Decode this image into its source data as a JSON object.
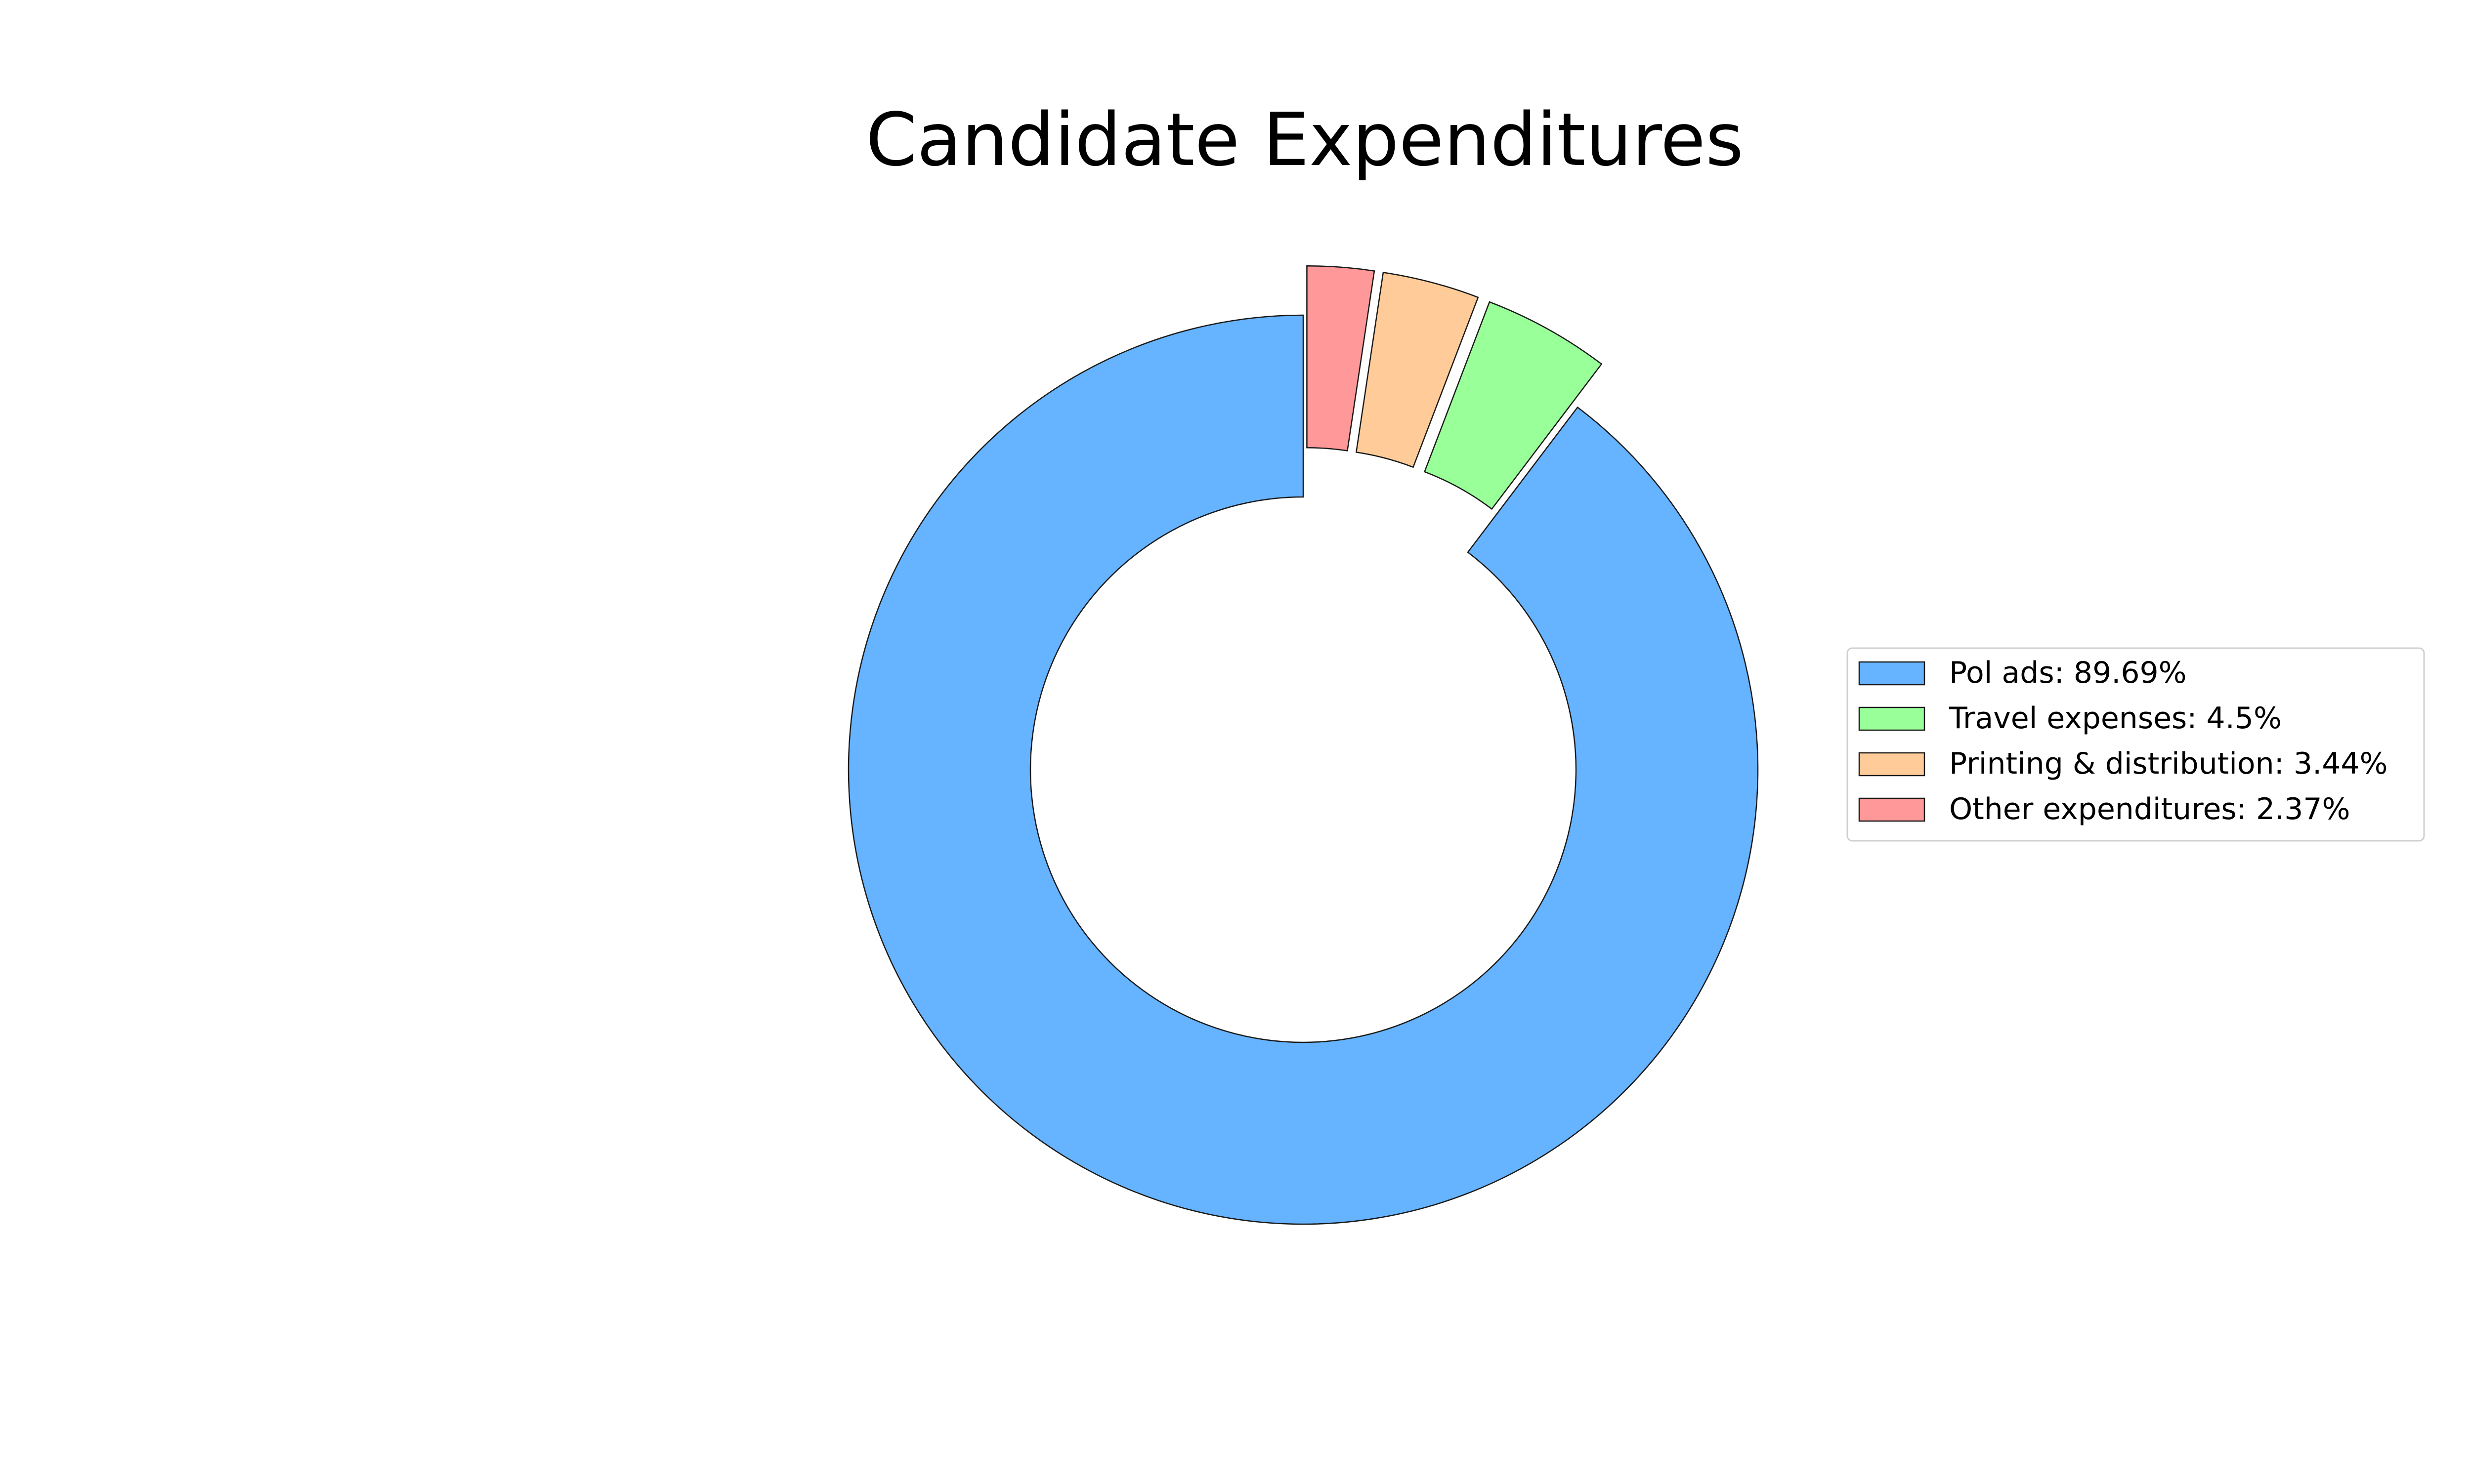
{
  "chart_data": {
    "type": "pie",
    "style": "donut",
    "title": "Candidate Expenditures",
    "legend_position": "right",
    "start_angle_deg": 90,
    "direction": "counterclockwise",
    "slices": [
      {
        "label": "Pol ads",
        "value": 89.69,
        "legend_text": "Pol ads: 89.69%",
        "color": "#66b3ff",
        "exploded": false
      },
      {
        "label": "Travel expenses",
        "value": 4.5,
        "legend_text": "Travel expenses: 4.5%",
        "color": "#99ff99",
        "exploded": true
      },
      {
        "label": "Printing & distribution",
        "value": 3.44,
        "legend_text": "Printing & distribution: 3.44%",
        "color": "#ffcc99",
        "exploded": true
      },
      {
        "label": "Other expenditures",
        "value": 2.37,
        "legend_text": "Other expenditures: 2.37%",
        "color": "#ff9999",
        "exploded": true
      }
    ]
  }
}
